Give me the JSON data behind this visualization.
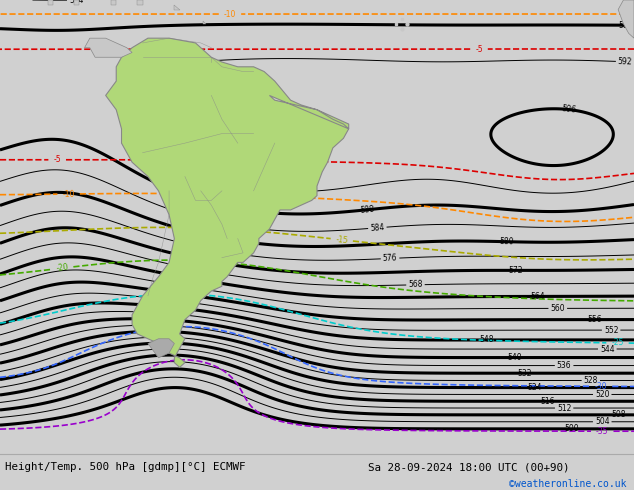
{
  "title_left": "Height/Temp. 500 hPa [gdmp][°C] ECMWF",
  "title_right": "Sa 28-09-2024 18:00 UTC (00+90)",
  "copyright": "©weatheronline.co.uk",
  "bg_color": "#d0d0d0",
  "sa_color": "#b0d878",
  "land_other_color": "#c8c8c8",
  "border_color": "#888888",
  "z500_color": "#000000",
  "t_m5_color": "#dd0000",
  "t_m10_color": "#ff8800",
  "t_m15_color": "#aaaa00",
  "t_m20_color": "#44aa00",
  "t_m25_color": "#00cccc",
  "t_m30_color": "#3366ff",
  "t_m35_color": "#9900cc",
  "t_m40_color": "#0000cc",
  "bottom_bg": "#e8e8e8",
  "copyright_color": "#0055cc",
  "lon_min": -100,
  "lon_max": 20,
  "lat_min": -75,
  "lat_max": 20
}
